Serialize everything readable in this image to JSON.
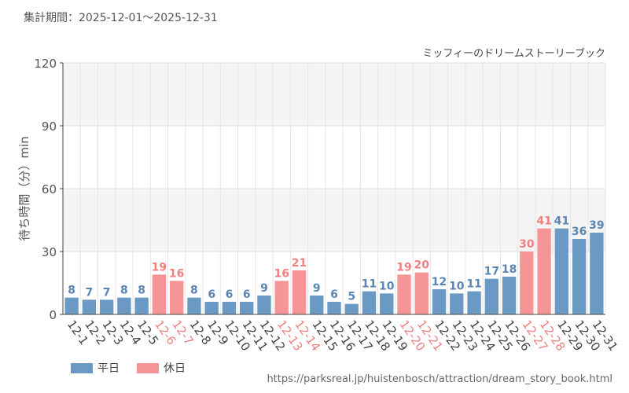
{
  "header": {
    "period": "集計期間：2025-12-01～2025-12-31"
  },
  "footer": {
    "url": "https://parksreal.jp/huistenbosch/attraction/dream_story_book.html"
  },
  "colors": {
    "weekday": "#6a9ac4",
    "holiday": "#f59595",
    "weekday_label": "#5b86b3",
    "holiday_label": "#f08080"
  },
  "chart_data": {
    "type": "bar",
    "title": "ミッフィーのドリームストーリーブック",
    "ylabel": "待ち時間（分）min",
    "xlabel": "",
    "ylim": [
      0,
      120
    ],
    "yticks": [
      0,
      30,
      60,
      90,
      120
    ],
    "categories": [
      "12-1",
      "12-2",
      "12-3",
      "12-4",
      "12-5",
      "12-6",
      "12-7",
      "12-8",
      "12-9",
      "12-10",
      "12-11",
      "12-12",
      "12-13",
      "12-14",
      "12-15",
      "12-16",
      "12-17",
      "12-18",
      "12-19",
      "12-20",
      "12-21",
      "12-22",
      "12-23",
      "12-24",
      "12-25",
      "12-26",
      "12-27",
      "12-28",
      "12-29",
      "12-30",
      "12-31"
    ],
    "values": [
      8,
      7,
      7,
      8,
      8,
      19,
      16,
      8,
      6,
      6,
      6,
      9,
      16,
      21,
      9,
      6,
      5,
      11,
      10,
      19,
      20,
      12,
      10,
      11,
      17,
      18,
      30,
      41,
      41,
      36,
      39
    ],
    "day_type": [
      "weekday",
      "weekday",
      "weekday",
      "weekday",
      "weekday",
      "holiday",
      "holiday",
      "weekday",
      "weekday",
      "weekday",
      "weekday",
      "weekday",
      "holiday",
      "holiday",
      "weekday",
      "weekday",
      "weekday",
      "weekday",
      "weekday",
      "holiday",
      "holiday",
      "weekday",
      "weekday",
      "weekday",
      "weekday",
      "weekday",
      "holiday",
      "holiday",
      "weekday",
      "weekday",
      "weekday"
    ],
    "legend": [
      {
        "key": "weekday",
        "label": "平日"
      },
      {
        "key": "holiday",
        "label": "休日"
      }
    ],
    "legend_position": "bottom-left"
  }
}
